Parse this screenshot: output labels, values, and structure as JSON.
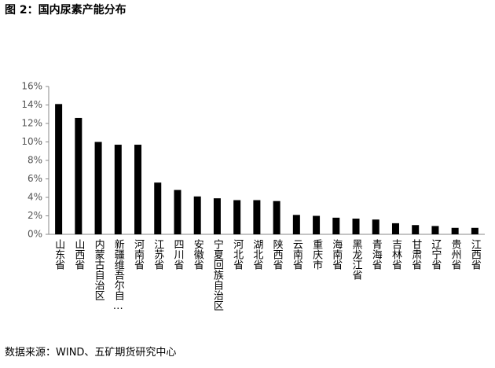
{
  "chart_data": {
    "type": "bar",
    "title": "图 2：国内尿素产能分布",
    "source": "数据来源：WIND、五矿期货研究中心",
    "categories": [
      "山东省",
      "山西省",
      "内蒙古自治区",
      "新疆维吾尔自…",
      "河南省",
      "江苏省",
      "四川省",
      "安徽省",
      "宁夏回族自治区",
      "河北省",
      "湖北省",
      "陕西省",
      "云南省",
      "重庆市",
      "海南省",
      "黑龙江省",
      "青海省",
      "吉林省",
      "甘肃省",
      "辽宁省",
      "贵州省",
      "江西省"
    ],
    "values": [
      14.1,
      12.6,
      10.0,
      9.7,
      9.7,
      5.6,
      4.8,
      4.1,
      3.9,
      3.7,
      3.7,
      3.6,
      2.1,
      2.0,
      1.8,
      1.7,
      1.6,
      1.2,
      1.0,
      0.9,
      0.7,
      0.7
    ],
    "color": "#000000",
    "ylim": [
      0,
      16
    ],
    "yticks": [
      {
        "value": 0,
        "label": "0%"
      },
      {
        "value": 2,
        "label": "2%"
      },
      {
        "value": 4,
        "label": "4%"
      },
      {
        "value": 6,
        "label": "6%"
      },
      {
        "value": 8,
        "label": "8%"
      },
      {
        "value": 10,
        "label": "10%"
      },
      {
        "value": 12,
        "label": "12%"
      },
      {
        "value": 14,
        "label": "14%"
      },
      {
        "value": 16,
        "label": "16%"
      }
    ],
    "grid": false
  }
}
